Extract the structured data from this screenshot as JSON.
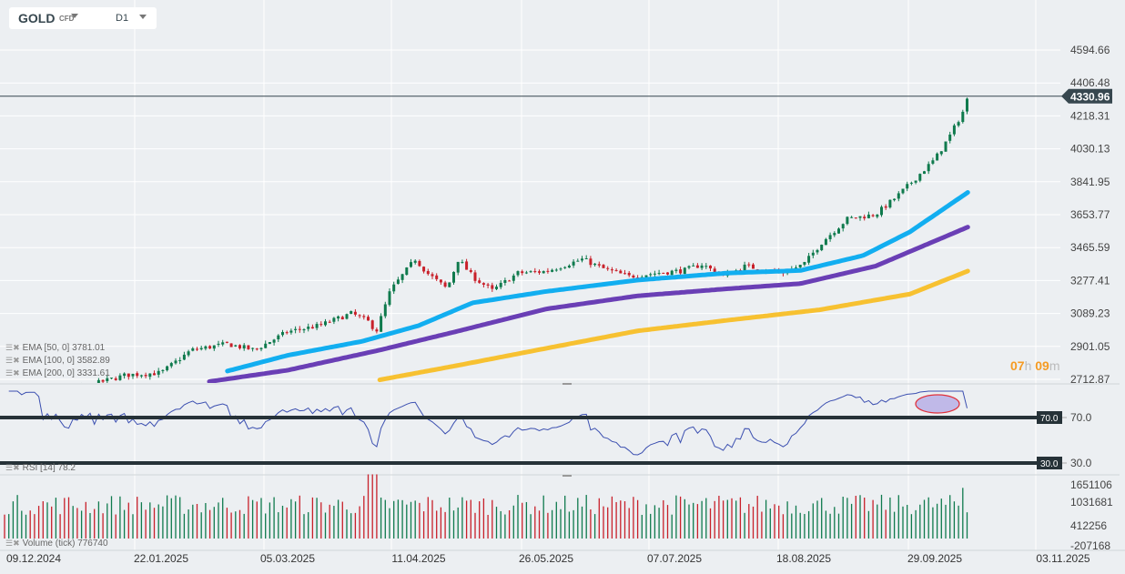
{
  "header": {
    "symbol": "GOLD",
    "symbol_type": "CFD",
    "timeframe": "D1"
  },
  "current_price": "4330.96",
  "countdown": {
    "hours": "07",
    "h_unit": "h",
    "minutes": "09",
    "m_unit": "m"
  },
  "indicators": {
    "ema50": "EMA [50,  0] 3781.01",
    "ema100": "EMA [100,  0] 3582.89",
    "ema200": "EMA [200,  0] 3331.61",
    "rsi": "RSI  [14]  78.2",
    "volume": "Volume  (tick)  776740"
  },
  "colors": {
    "up": "#0f7a4d",
    "down": "#c8202a",
    "ema50": "#12aef0",
    "ema100": "#6a3fb5",
    "ema200": "#f7c131",
    "price_label": "#37474f",
    "timer": "#f59b23"
  },
  "chart_data": [
    {
      "type": "candlestick",
      "price_ticks": [
        "4594.66",
        "4406.48",
        "4218.31",
        "4030.13",
        "3841.95",
        "3653.77",
        "3465.59",
        "3277.41",
        "3089.23",
        "2901.05",
        "2712.87"
      ],
      "ylim": [
        2712.87,
        4594.66
      ],
      "x_labels": [
        "09.12.2024",
        "22.01.2025",
        "05.03.2025",
        "11.04.2025",
        "26.05.2025",
        "07.07.2025",
        "18.08.2025",
        "29.09.2025",
        "03.11.2025"
      ],
      "close_path": [
        [
          "2024-11-29",
          2640
        ],
        [
          "2024-12-22",
          2650
        ],
        [
          "2025-01-10",
          2738
        ],
        [
          "2025-01-22",
          2750
        ],
        [
          "2025-02-01",
          2880
        ],
        [
          "2025-02-13",
          2915
        ],
        [
          "2025-02-22",
          2880
        ],
        [
          "2025-03-05",
          2985
        ],
        [
          "2025-03-14",
          3020
        ],
        [
          "2025-03-23",
          3090
        ],
        [
          "2025-03-28",
          3040
        ],
        [
          "2025-03-30",
          2985
        ],
        [
          "2025-04-03",
          3220
        ],
        [
          "2025-04-10",
          3400
        ],
        [
          "2025-04-14",
          3320
        ],
        [
          "2025-04-21",
          3230
        ],
        [
          "2025-04-25",
          3400
        ],
        [
          "2025-04-30",
          3300
        ],
        [
          "2025-05-07",
          3220
        ],
        [
          "2025-05-16",
          3320
        ],
        [
          "2025-05-26",
          3330
        ],
        [
          "2025-06-07",
          3400
        ],
        [
          "2025-06-13",
          3350
        ],
        [
          "2025-06-22",
          3300
        ],
        [
          "2025-07-01",
          3320
        ],
        [
          "2025-07-10",
          3335
        ],
        [
          "2025-07-16",
          3370
        ],
        [
          "2025-07-23",
          3300
        ],
        [
          "2025-07-30",
          3360
        ],
        [
          "2025-08-11",
          3320
        ],
        [
          "2025-08-18",
          3370
        ],
        [
          "2025-08-24",
          3500
        ],
        [
          "2025-09-01",
          3630
        ],
        [
          "2025-09-10",
          3655
        ],
        [
          "2025-09-17",
          3760
        ],
        [
          "2025-09-23",
          3865
        ],
        [
          "2025-09-29",
          3970
        ],
        [
          "2025-10-03",
          4100
        ],
        [
          "2025-10-07",
          4255
        ],
        [
          "2025-10-08",
          4331
        ]
      ],
      "ema50": [
        [
          "2025-02-13",
          2760
        ],
        [
          "2025-03-05",
          2850
        ],
        [
          "2025-03-26",
          2930
        ],
        [
          "2025-04-11",
          3020
        ],
        [
          "2025-04-30",
          3150
        ],
        [
          "2025-05-26",
          3215
        ],
        [
          "2025-06-25",
          3280
        ],
        [
          "2025-07-24",
          3320
        ],
        [
          "2025-08-17",
          3335
        ],
        [
          "2025-09-06",
          3420
        ],
        [
          "2025-09-21",
          3555
        ],
        [
          "2025-10-08",
          3781.01
        ]
      ],
      "ema100": [
        [
          "2025-02-07",
          2700
        ],
        [
          "2025-03-05",
          2765
        ],
        [
          "2025-03-31",
          2880
        ],
        [
          "2025-04-24",
          2985
        ],
        [
          "2025-05-26",
          3115
        ],
        [
          "2025-06-25",
          3190
        ],
        [
          "2025-07-24",
          3230
        ],
        [
          "2025-08-17",
          3260
        ],
        [
          "2025-09-10",
          3360
        ],
        [
          "2025-10-08",
          3582.89
        ]
      ],
      "ema200": [
        [
          "2025-03-31",
          2710
        ],
        [
          "2025-04-24",
          2790
        ],
        [
          "2025-05-26",
          2890
        ],
        [
          "2025-06-25",
          2990
        ],
        [
          "2025-07-24",
          3050
        ],
        [
          "2025-08-23",
          3110
        ],
        [
          "2025-09-21",
          3200
        ],
        [
          "2025-10-08",
          3331.61
        ]
      ]
    },
    {
      "type": "line",
      "name": "RSI [14]",
      "levels": [
        "70.0",
        "30.0"
      ],
      "last": 78.2
    },
    {
      "type": "bar",
      "name": "Volume (tick)",
      "ticks": [
        "1651106",
        "1031681",
        "412256",
        "-207168"
      ],
      "last": 776740
    }
  ]
}
